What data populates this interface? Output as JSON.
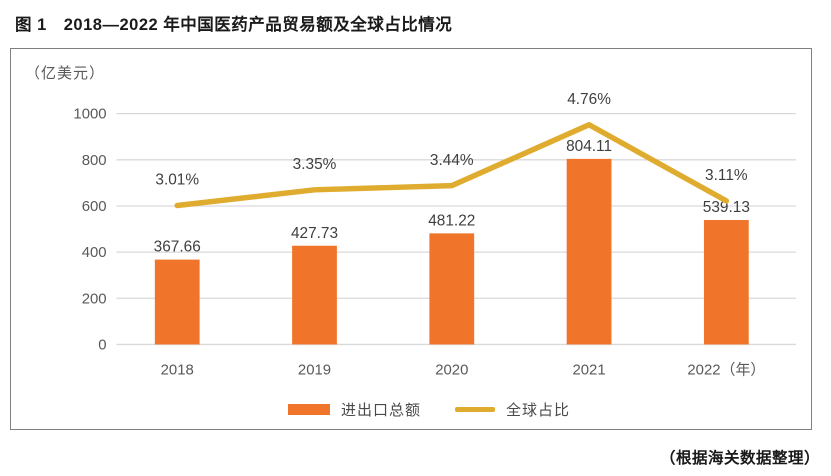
{
  "title": "图 1　2018—2022 年中国医药产品贸易额及全球占比情况",
  "source_note": "（根据海关数据整理）",
  "chart_data": {
    "type": "bar",
    "subtype": "bar-line-combo",
    "unit_label": "（亿美元）",
    "categories": [
      "2018",
      "2019",
      "2020",
      "2021",
      "2022（年）"
    ],
    "series": [
      {
        "name": "进出口总额",
        "type": "bar",
        "values": [
          367.66,
          427.73,
          481.22,
          804.11,
          539.13
        ],
        "value_labels": [
          "367.66",
          "427.73",
          "481.22",
          "804.11",
          "539.13"
        ],
        "color": "#F0742A"
      },
      {
        "name": "全球占比",
        "type": "line",
        "values_pct": [
          3.01,
          3.35,
          3.44,
          4.76,
          3.11
        ],
        "value_labels": [
          "3.01%",
          "3.35%",
          "3.44%",
          "4.76%",
          "3.11%"
        ],
        "color": "#E0AC2F"
      }
    ],
    "y_axis": {
      "ticks": [
        0,
        200,
        400,
        600,
        800,
        1000
      ],
      "range": [
        0,
        1000
      ]
    },
    "secondary_axis_range_pct": [
      0,
      5
    ],
    "grid": true,
    "legend_position": "bottom",
    "colors": {
      "grid": "#D9D9D9",
      "tick_text": "#595959",
      "label_text": "#3F3F3F",
      "frame_border": "#7F7F7F"
    }
  }
}
